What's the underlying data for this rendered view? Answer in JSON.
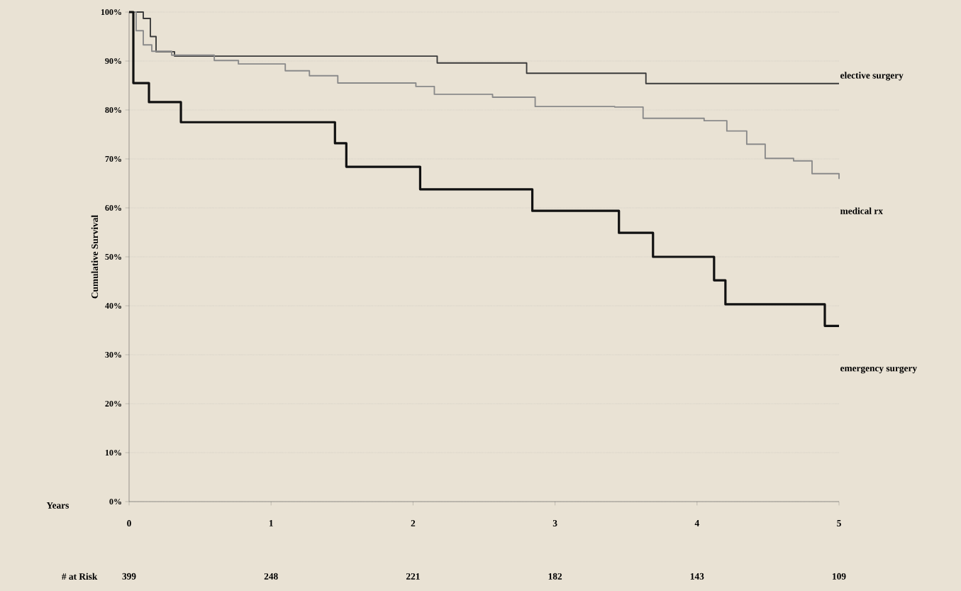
{
  "chart_data": {
    "type": "step",
    "ylabel": "Cumulative Survival",
    "xlabel": "Years",
    "xlim": [
      0,
      5
    ],
    "xticks": [
      0,
      1,
      2,
      3,
      4,
      5
    ],
    "ylim": [
      0,
      100
    ],
    "yticks": [
      {
        "value": 0,
        "label": "0%"
      },
      {
        "value": 10,
        "label": "10%"
      },
      {
        "value": 20,
        "label": "20%"
      },
      {
        "value": 30,
        "label": "30%"
      },
      {
        "value": 40,
        "label": "40%"
      },
      {
        "value": 50,
        "label": "50%"
      },
      {
        "value": 60,
        "label": "60%"
      },
      {
        "value": 70,
        "label": "70%"
      },
      {
        "value": 80,
        "label": "80%"
      },
      {
        "value": 90,
        "label": "90%"
      },
      {
        "value": 100,
        "label": "100%"
      }
    ],
    "grid": "y",
    "series": [
      {
        "name": "elective surgery",
        "color": "#3a3a3a",
        "x": [
          0,
          0.1,
          0.15,
          0.19,
          0.32,
          2.17,
          2.8,
          3.64,
          5.0
        ],
        "values": [
          100,
          98.7,
          95.0,
          91.9,
          91.0,
          89.6,
          87.5,
          85.4,
          85.4
        ]
      },
      {
        "name": "medical rx",
        "color": "#8a8a8a",
        "x": [
          0,
          0.05,
          0.1,
          0.16,
          0.3,
          0.6,
          0.77,
          1.1,
          1.27,
          1.47,
          2.02,
          2.15,
          2.56,
          2.86,
          3.42,
          3.62,
          4.05,
          4.21,
          4.35,
          4.48,
          4.68,
          4.81,
          5.0
        ],
        "values": [
          100,
          96.2,
          93.3,
          92.0,
          91.2,
          90.1,
          89.4,
          88.0,
          87.0,
          85.5,
          84.8,
          83.2,
          82.6,
          80.7,
          80.6,
          78.3,
          77.8,
          75.7,
          73.0,
          70.1,
          69.6,
          67.0,
          65.9
        ]
      },
      {
        "name": "emergency surgery",
        "color": "#111111",
        "x": [
          0,
          0.03,
          0.14,
          0.365,
          1.45,
          1.53,
          2.05,
          2.84,
          3.45,
          3.69,
          4.12,
          4.2,
          4.9,
          5.0
        ],
        "values": [
          100,
          85.5,
          81.6,
          77.5,
          73.2,
          68.4,
          63.8,
          59.4,
          54.9,
          50,
          45.2,
          40.3,
          35.9,
          35.9
        ]
      }
    ],
    "annotations": [
      "# at Risk",
      "399",
      "248",
      "221",
      "182",
      "143",
      "109"
    ]
  }
}
